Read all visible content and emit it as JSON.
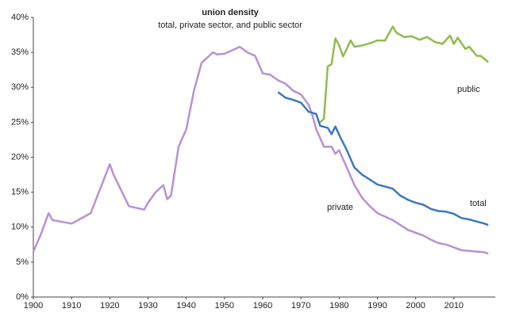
{
  "chart_data": {
    "type": "line",
    "title": "union density",
    "subtitle": "total, private sector, and public sector",
    "xlim": [
      1900,
      2020
    ],
    "xticks": [
      1900,
      1910,
      1920,
      1930,
      1940,
      1950,
      1960,
      1970,
      1980,
      1990,
      2000,
      2010
    ],
    "ylim": [
      0,
      40
    ],
    "yticks": [
      {
        "value": 0,
        "label": "0%"
      },
      {
        "value": 5,
        "label": "5%"
      },
      {
        "value": 10,
        "label": "10%"
      },
      {
        "value": 15,
        "label": "15%"
      },
      {
        "value": 20,
        "label": "20%"
      },
      {
        "value": 25,
        "label": "25%"
      },
      {
        "value": 30,
        "label": "30%"
      },
      {
        "value": 35,
        "label": "35%"
      },
      {
        "value": 40,
        "label": "40%"
      }
    ],
    "grid": false,
    "series": [
      {
        "name": "private",
        "color": "#b692d4",
        "x": [
          1900,
          1902,
          1904,
          1905,
          1910,
          1915,
          1920,
          1921,
          1925,
          1929,
          1930,
          1932,
          1934,
          1935,
          1936,
          1938,
          1940,
          1942,
          1944,
          1946,
          1947,
          1948,
          1950,
          1952,
          1954,
          1956,
          1958,
          1960,
          1962,
          1964,
          1966,
          1968,
          1970,
          1972,
          1973,
          1974,
          1976,
          1978,
          1979,
          1980,
          1982,
          1984,
          1986,
          1988,
          1990,
          1992,
          1994,
          1996,
          1998,
          2000,
          2002,
          2004,
          2006,
          2008,
          2010,
          2012,
          2014,
          2016,
          2018,
          2019
        ],
        "values": [
          6.5,
          9,
          12,
          11,
          10.5,
          12,
          19,
          17.5,
          13,
          12.5,
          13.5,
          15,
          16,
          14,
          14.5,
          21.5,
          24,
          29.5,
          33.5,
          34.5,
          35,
          34.7,
          34.8,
          35.3,
          35.8,
          35,
          34.5,
          32,
          31.8,
          31,
          30.5,
          29.5,
          29,
          27.5,
          26,
          24,
          21.5,
          21.5,
          20.5,
          21,
          18.5,
          16,
          14.2,
          13,
          12,
          11.5,
          11,
          10.3,
          9.6,
          9.2,
          8.8,
          8.2,
          7.7,
          7.5,
          7.1,
          6.7,
          6.6,
          6.5,
          6.4,
          6.2
        ]
      },
      {
        "name": "total",
        "color": "#3d78bd",
        "x": [
          1964,
          1966,
          1968,
          1970,
          1972,
          1974,
          1975,
          1977,
          1978,
          1979,
          1980,
          1982,
          1984,
          1986,
          1988,
          1990,
          1992,
          1994,
          1996,
          1998,
          2000,
          2002,
          2004,
          2006,
          2008,
          2010,
          2012,
          2014,
          2016,
          2018,
          2019
        ],
        "values": [
          29.3,
          28.5,
          28.2,
          27.8,
          26.5,
          26.2,
          24.5,
          24.2,
          23.3,
          24.4,
          23.2,
          21,
          18.5,
          17.5,
          16.8,
          16.1,
          15.8,
          15.5,
          14.5,
          13.9,
          13.5,
          13.2,
          12.6,
          12.3,
          12.2,
          11.9,
          11.3,
          11.1,
          10.8,
          10.5,
          10.3
        ]
      },
      {
        "name": "public",
        "color": "#8dbd4d",
        "x": [
          1975,
          1976,
          1977,
          1978,
          1979,
          1980,
          1981,
          1983,
          1984,
          1986,
          1988,
          1990,
          1992,
          1994,
          1995,
          1997,
          1999,
          2001,
          2003,
          2005,
          2007,
          2009,
          2010,
          2011,
          2013,
          2014,
          2016,
          2017,
          2019
        ],
        "values": [
          25,
          25.5,
          33,
          33.3,
          37,
          36,
          34.4,
          36.7,
          35.8,
          36,
          36.3,
          36.7,
          36.7,
          38.7,
          37.8,
          37.2,
          37.3,
          36.8,
          37.2,
          36.5,
          36.2,
          37.4,
          36.2,
          37.1,
          35.5,
          35.8,
          34.5,
          34.5,
          33.6
        ]
      }
    ]
  }
}
